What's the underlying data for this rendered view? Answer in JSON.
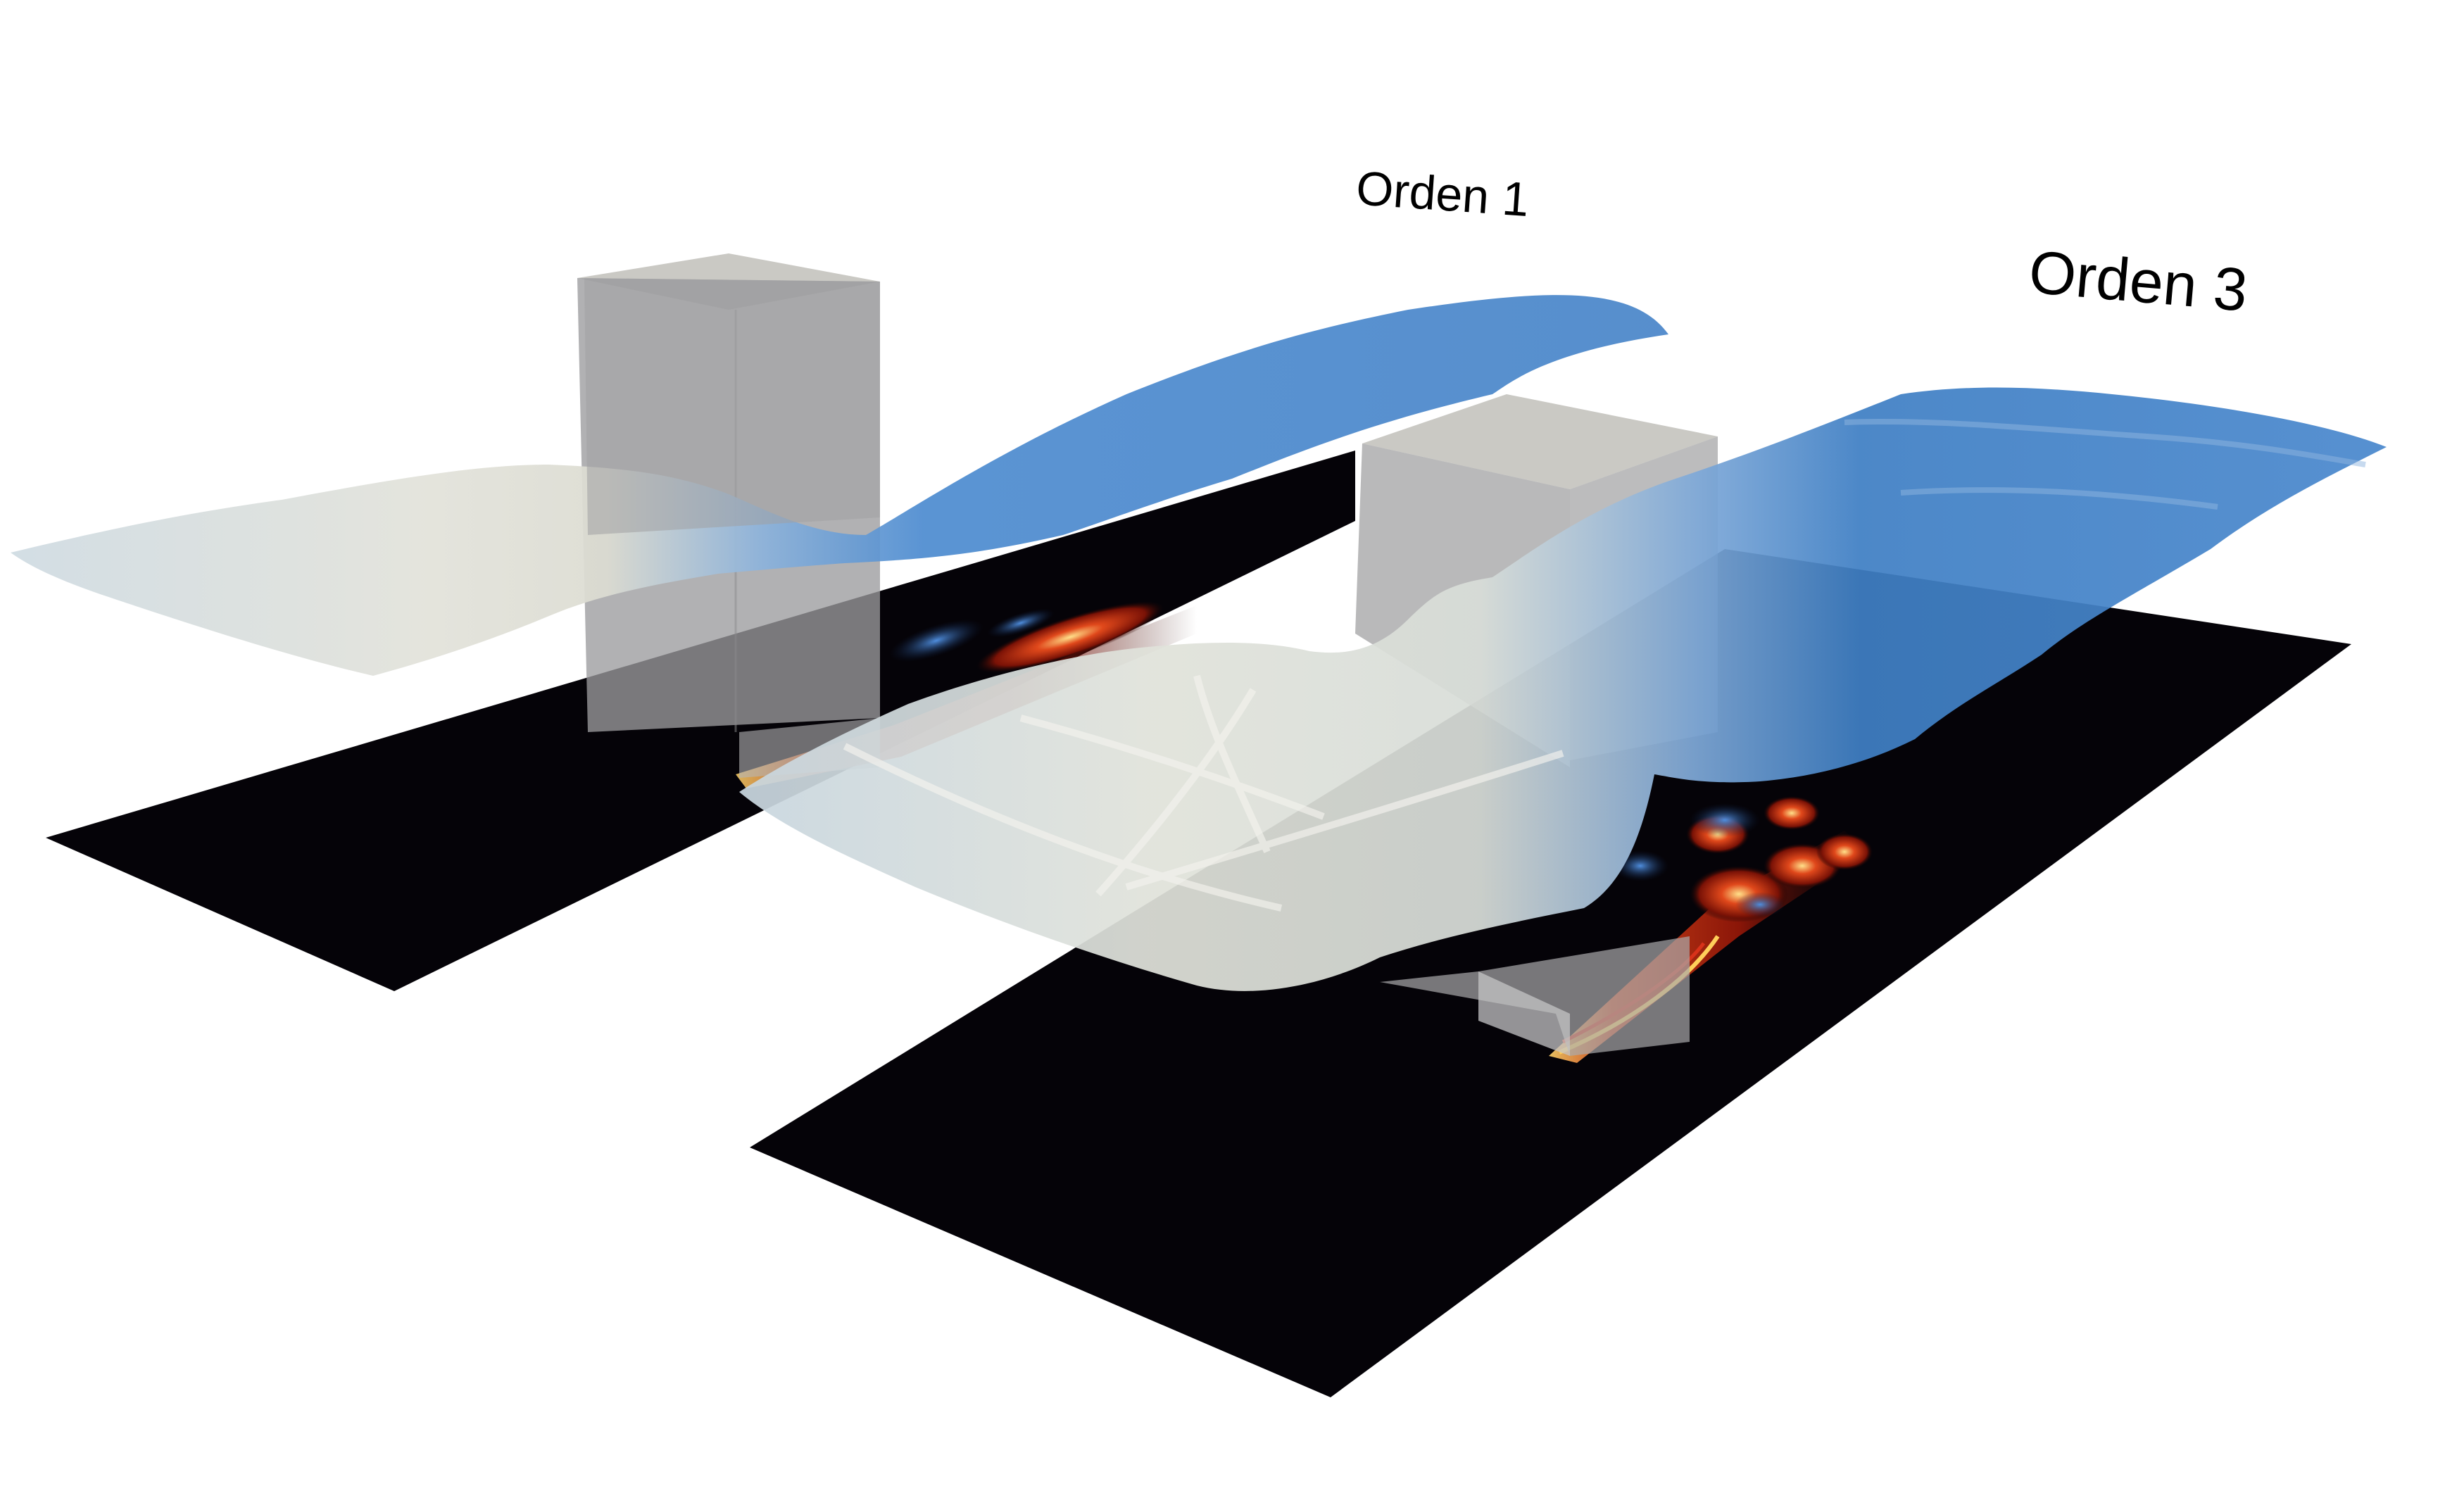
{
  "labels": {
    "order1": "Orden 1",
    "order3": "Orden 3"
  },
  "colors": {
    "background": "#ffffff",
    "ground": "#050308",
    "obstacle_front": "#9a9a9c",
    "obstacle_top": "#c9c8c3",
    "water_light": "#dfe3df",
    "water_blue": "#3f7fc4",
    "vortex_red": "#c0260f",
    "vortex_yellow": "#ffd36a",
    "vortex_blue": "#2e6fc9"
  }
}
